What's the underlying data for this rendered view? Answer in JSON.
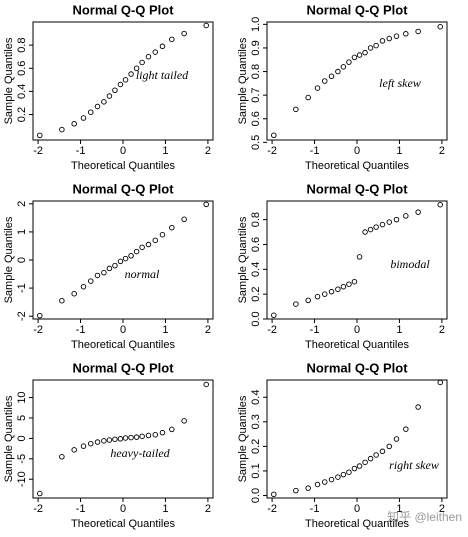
{
  "chart_data": [
    {
      "type": "scatter",
      "title": "Normal Q-Q Plot",
      "x_label": "Theoretical Quantiles",
      "y_label": "Sample Quantiles",
      "annotation": "light tailed",
      "x": [
        -1.96,
        -1.44,
        -1.15,
        -0.93,
        -0.76,
        -0.6,
        -0.45,
        -0.32,
        -0.19,
        -0.06,
        0.06,
        0.19,
        0.32,
        0.45,
        0.6,
        0.76,
        0.93,
        1.15,
        1.44,
        1.96
      ],
      "y": [
        0.02,
        0.07,
        0.12,
        0.17,
        0.22,
        0.27,
        0.31,
        0.36,
        0.41,
        0.46,
        0.5,
        0.55,
        0.6,
        0.65,
        0.7,
        0.74,
        0.79,
        0.85,
        0.9,
        0.97
      ],
      "xlim": [
        -2.12,
        2.12
      ],
      "ylim": [
        -0.02,
        1.0
      ],
      "xticks": [
        -2,
        -1,
        0,
        1,
        2
      ],
      "yticks": [
        0.2,
        0.4,
        0.6,
        0.8
      ],
      "color": "#000000"
    },
    {
      "type": "scatter",
      "title": "Normal Q-Q Plot",
      "x_label": "Theoretical Quantiles",
      "y_label": "Sample Quantiles",
      "annotation": "left skew",
      "x": [
        -1.96,
        -1.44,
        -1.15,
        -0.93,
        -0.76,
        -0.6,
        -0.45,
        -0.32,
        -0.19,
        -0.06,
        0.06,
        0.19,
        0.32,
        0.45,
        0.6,
        0.76,
        0.93,
        1.15,
        1.44,
        1.96
      ],
      "y": [
        0.53,
        0.64,
        0.69,
        0.73,
        0.76,
        0.78,
        0.8,
        0.82,
        0.84,
        0.86,
        0.87,
        0.88,
        0.9,
        0.91,
        0.93,
        0.94,
        0.95,
        0.96,
        0.97,
        0.99
      ],
      "xlim": [
        -2.12,
        2.12
      ],
      "ylim": [
        0.51,
        1.01
      ],
      "xticks": [
        -2,
        -1,
        0,
        1,
        2
      ],
      "yticks": [
        0.5,
        0.6,
        0.7,
        0.8,
        0.9,
        {
          "value": 1.0,
          "label": "1.0"
        }
      ],
      "color": "#000000"
    },
    {
      "type": "scatter",
      "title": "Normal Q-Q Plot",
      "x_label": "Theoretical Quantiles",
      "y_label": "Sample Quantiles",
      "annotation": "normal",
      "x": [
        -1.96,
        -1.44,
        -1.15,
        -0.93,
        -0.76,
        -0.6,
        -0.45,
        -0.32,
        -0.19,
        -0.06,
        0.06,
        0.19,
        0.32,
        0.45,
        0.6,
        0.76,
        0.93,
        1.15,
        1.44,
        1.96
      ],
      "y": [
        -1.98,
        -1.45,
        -1.2,
        -0.95,
        -0.75,
        -0.55,
        -0.45,
        -0.3,
        -0.2,
        -0.05,
        0.05,
        0.15,
        0.3,
        0.45,
        0.55,
        0.7,
        0.9,
        1.15,
        1.45,
        1.98
      ],
      "xlim": [
        -2.12,
        2.12
      ],
      "ylim": [
        -2.1,
        2.1
      ],
      "xticks": [
        -2,
        -1,
        0,
        1,
        2
      ],
      "yticks": [
        -2,
        -1,
        0,
        1,
        2
      ],
      "color": "#000000"
    },
    {
      "type": "scatter",
      "title": "Normal Q-Q Plot",
      "x_label": "Theoretical Quantiles",
      "y_label": "Sample Quantiles",
      "annotation": "bimodal",
      "x": [
        -1.96,
        -1.44,
        -1.15,
        -0.93,
        -0.76,
        -0.6,
        -0.45,
        -0.32,
        -0.19,
        -0.06,
        0.06,
        0.19,
        0.32,
        0.45,
        0.6,
        0.76,
        0.93,
        1.15,
        1.44,
        1.96
      ],
      "y": [
        0.03,
        0.12,
        0.15,
        0.18,
        0.2,
        0.22,
        0.24,
        0.26,
        0.28,
        0.3,
        0.5,
        0.7,
        0.72,
        0.74,
        0.76,
        0.78,
        0.8,
        0.83,
        0.86,
        0.92
      ],
      "xlim": [
        -2.12,
        2.12
      ],
      "ylim": [
        0.0,
        0.95
      ],
      "xticks": [
        -2,
        -1,
        0,
        1,
        2
      ],
      "yticks": [
        {
          "value": 0,
          "label": "0.0"
        },
        0.2,
        0.4,
        0.6,
        0.8
      ],
      "color": "#000000"
    },
    {
      "type": "scatter",
      "title": "Normal Q-Q Plot",
      "x_label": "Theoretical Quantiles",
      "y_label": "Sample Quantiles",
      "annotation": "heavy-tailed",
      "x": [
        -1.96,
        -1.44,
        -1.15,
        -0.93,
        -0.76,
        -0.6,
        -0.45,
        -0.32,
        -0.19,
        -0.06,
        0.06,
        0.19,
        0.32,
        0.45,
        0.6,
        0.76,
        0.93,
        1.15,
        1.44,
        1.96
      ],
      "y": [
        -13.5,
        -4.5,
        -2.8,
        -1.9,
        -1.3,
        -0.9,
        -0.6,
        -0.4,
        -0.2,
        -0.1,
        0.1,
        0.2,
        0.3,
        0.5,
        0.7,
        0.9,
        1.4,
        2.2,
        4.3,
        13.2
      ],
      "xlim": [
        -2.12,
        2.12
      ],
      "ylim": [
        -14.6,
        14.3
      ],
      "xticks": [
        -2,
        -1,
        0,
        1,
        2
      ],
      "yticks": [
        -10,
        -5,
        0,
        5,
        10
      ],
      "color": "#000000"
    },
    {
      "type": "scatter",
      "title": "Normal Q-Q Plot",
      "x_label": "Theoretical Quantiles",
      "y_label": "Sample Quantiles",
      "annotation": "right skew",
      "x": [
        -1.96,
        -1.44,
        -1.15,
        -0.93,
        -0.76,
        -0.6,
        -0.45,
        -0.32,
        -0.19,
        -0.06,
        0.06,
        0.19,
        0.32,
        0.45,
        0.6,
        0.76,
        0.93,
        1.15,
        1.44,
        1.96
      ],
      "y": [
        0.005,
        0.02,
        0.03,
        0.045,
        0.055,
        0.065,
        0.075,
        0.085,
        0.095,
        0.11,
        0.12,
        0.135,
        0.15,
        0.165,
        0.18,
        0.2,
        0.23,
        0.27,
        0.36,
        0.46
      ],
      "xlim": [
        -2.12,
        2.12
      ],
      "ylim": [
        -0.01,
        0.47
      ],
      "xticks": [
        -2,
        -1,
        0,
        1,
        2
      ],
      "yticks": [
        {
          "value": 0,
          "label": "0.0"
        },
        0.1,
        0.2,
        0.3,
        0.4
      ],
      "color": "#000000"
    }
  ],
  "watermark": "知乎 @leithen"
}
